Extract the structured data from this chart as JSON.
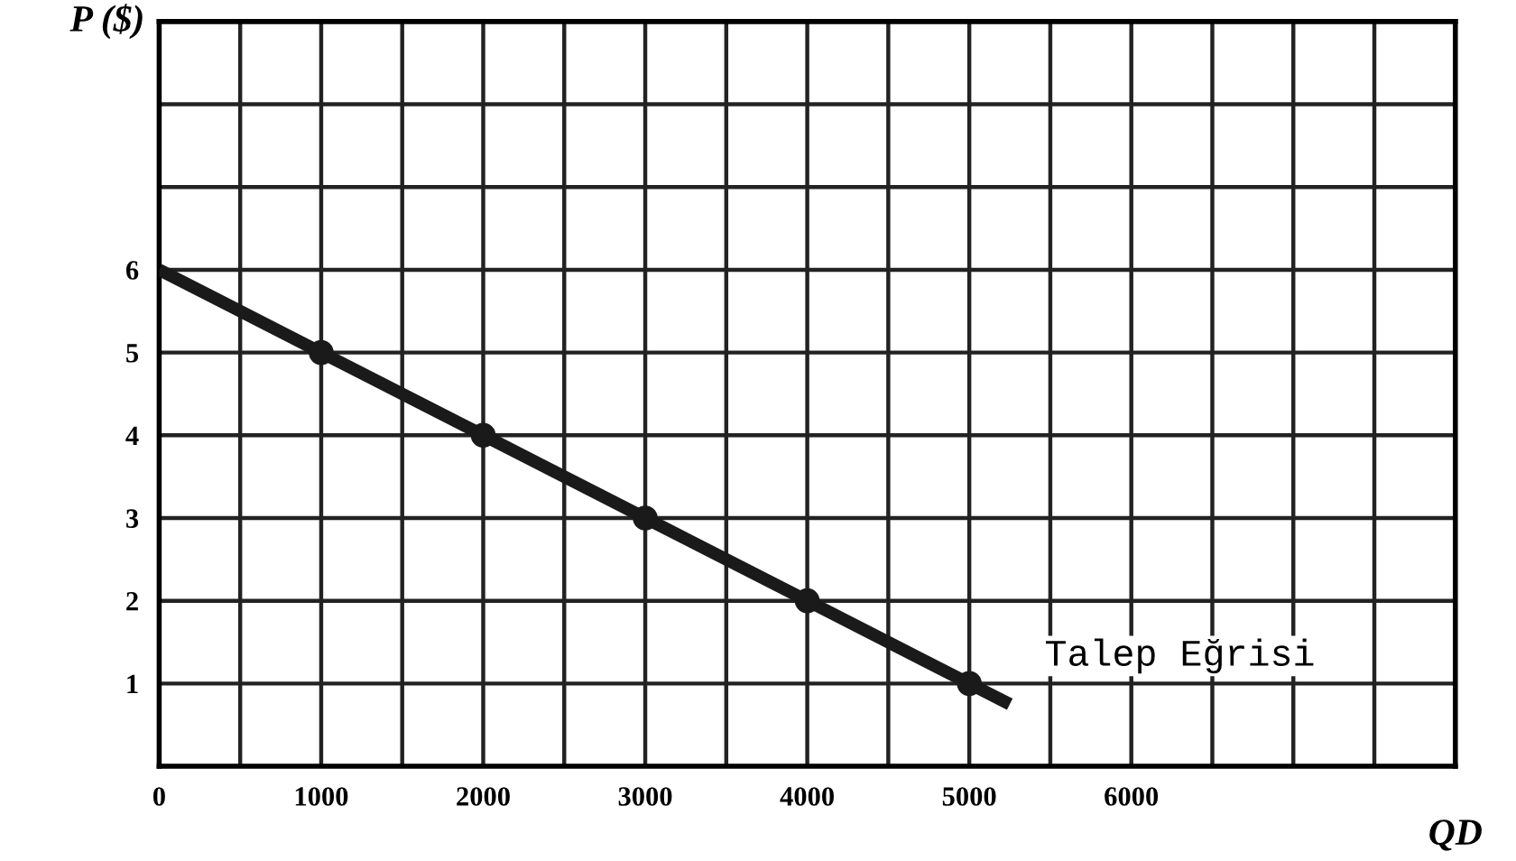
{
  "chart_data": {
    "type": "line",
    "xlabel": "QD",
    "ylabel": "P ($)",
    "series": [
      {
        "x": [
          0,
          1000,
          2000,
          3000,
          4000,
          5000,
          5250
        ],
        "values": [
          6,
          5,
          4,
          3,
          2,
          1,
          0.75
        ],
        "color": "#1a1a1a",
        "marker": "none"
      },
      {
        "type": "scatter",
        "x": [
          1000,
          2000,
          3000,
          4000,
          5000
        ],
        "values": [
          5,
          4,
          3,
          2,
          1
        ],
        "color": "#1a1a1a",
        "marker": "circle"
      }
    ],
    "annotations": [
      {
        "text": "Talep Eğrisi",
        "x": 5000,
        "y": 1
      }
    ],
    "xlim": [
      0,
      8000
    ],
    "ylim": [
      0,
      9
    ],
    "xticks": [
      0,
      {
        "value": 500,
        "label": null
      },
      1000,
      {
        "value": 1500,
        "label": null
      },
      2000,
      {
        "value": 2500,
        "label": null
      },
      3000,
      {
        "value": 3500,
        "label": null
      },
      4000,
      {
        "value": 4500,
        "label": null
      },
      5000,
      {
        "value": 5500,
        "label": null
      },
      6000,
      {
        "value": 6500,
        "label": null
      },
      {
        "value": 7000,
        "label": null
      },
      {
        "value": 7500,
        "label": null
      },
      {
        "value": 8000,
        "label": null
      }
    ],
    "yticks": [
      {
        "value": 0,
        "label": null
      },
      1,
      2,
      3,
      4,
      5,
      6,
      {
        "value": 7,
        "label": null
      },
      {
        "value": 8,
        "label": null
      },
      {
        "value": 9,
        "label": null
      }
    ],
    "grid": true,
    "legend": false
  }
}
